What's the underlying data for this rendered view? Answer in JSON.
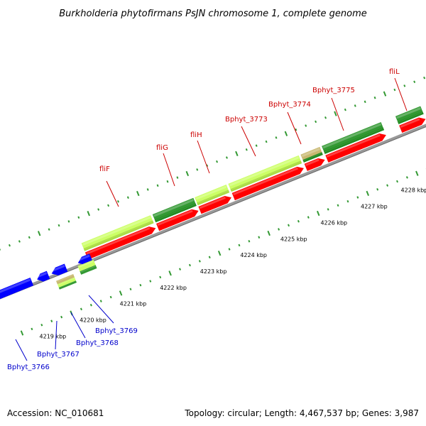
{
  "title": "Burkholderia phytofirmans PsJN chromosome 1, complete genome",
  "footer": {
    "accession": "Accession: NC_010681",
    "summary": "Topology: circular; Length: 4,467,537 bp; Genes: 3,987"
  },
  "colors": {
    "forward_cds": "#ff0000",
    "reverse_cds": "#0000ff",
    "gc_high": "#ccff66",
    "gc_dark": "#339933",
    "gc_dark_green": "#228b22",
    "gc_light_green": "#aadd44",
    "tan": "#c8b870",
    "backbone": "#999999",
    "tick": "#339933",
    "upper_label": "#cc0000",
    "lower_label": "#0000cc"
  },
  "kbp_labels": [
    "4219 kbp",
    "4220 kbp",
    "4221 kbp",
    "4222 kbp",
    "4223 kbp",
    "4224 kbp",
    "4225 kbp",
    "4226 kbp",
    "4227 kbp",
    "4228 kbp"
  ],
  "upper_genes": [
    "fliF",
    "fliG",
    "fliH",
    "Bphyt_3773",
    "Bphyt_3774",
    "Bphyt_3775",
    "fliL"
  ],
  "lower_genes": [
    "Bphyt_3766",
    "Bphyt_3767",
    "Bphyt_3768",
    "Bphyt_3769"
  ]
}
